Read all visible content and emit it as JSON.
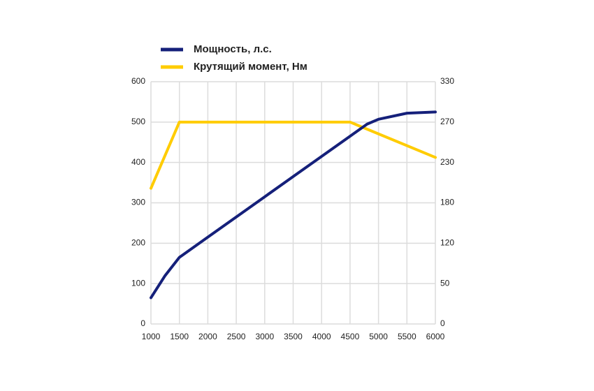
{
  "chart_data": {
    "type": "line",
    "xlim": [
      1000,
      6000
    ],
    "xticks": [
      1000,
      1500,
      2000,
      2500,
      3000,
      3500,
      4000,
      4500,
      5000,
      5500,
      6000
    ],
    "ylim": [
      0,
      600
    ],
    "yticks": [
      0,
      100,
      200,
      300,
      400,
      500,
      600
    ],
    "y2lim": [
      0,
      330
    ],
    "y2ticks": [
      0,
      50,
      120,
      180,
      230,
      270,
      330
    ],
    "grid": true,
    "series": [
      {
        "name": "Мощность, л.с.",
        "color": "#15207a",
        "x": [
          1000,
          1250,
          1500,
          1750,
          2000,
          2500,
          3000,
          3500,
          4000,
          4500,
          4800,
          5000,
          5500,
          6000
        ],
        "values": [
          65,
          120,
          165,
          190,
          215,
          265,
          315,
          365,
          415,
          465,
          495,
          507,
          522,
          525
        ]
      },
      {
        "name": "Крутящий момент, Нм",
        "color": "#ffcc00",
        "axis": "y2",
        "x": [
          1000,
          1500,
          4500,
          6000
        ],
        "values": [
          198,
          270,
          270,
          235
        ]
      }
    ]
  }
}
